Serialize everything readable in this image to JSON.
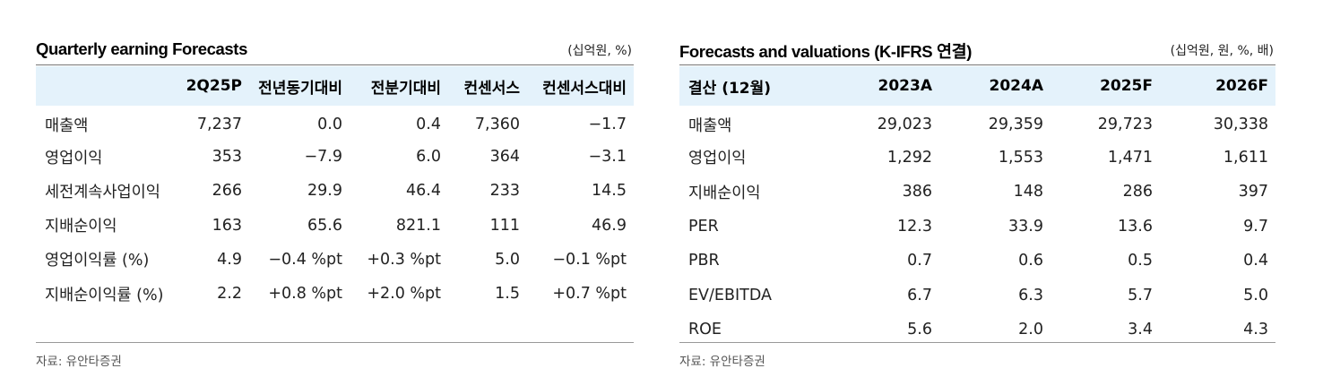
{
  "left": {
    "title": "Quarterly earning Forecasts",
    "unit": "(십억원, %)",
    "headers": [
      "",
      "2Q25P",
      "전년동기대비",
      "전분기대비",
      "컨센서스",
      "컨센서스대비"
    ],
    "rows": [
      [
        "매출액",
        "7,237",
        "0.0",
        "0.4",
        "7,360",
        "−1.7"
      ],
      [
        "영업이익",
        "353",
        "−7.9",
        "6.0",
        "364",
        "−3.1"
      ],
      [
        "세전계속사업이익",
        "266",
        "29.9",
        "46.4",
        "233",
        "14.5"
      ],
      [
        "지배순이익",
        "163",
        "65.6",
        "821.1",
        "111",
        "46.9"
      ],
      [
        "영업이익률 (%)",
        "4.9",
        "−0.4 %pt",
        "+0.3 %pt",
        "5.0",
        "−0.1 %pt"
      ],
      [
        "지배순이익률 (%)",
        "2.2",
        "+0.8 %pt",
        "+2.0 %pt",
        "1.5",
        "+0.7 %pt"
      ]
    ],
    "source": "자료: 유안타증권"
  },
  "right": {
    "title": "Forecasts and valuations (K-IFRS 연결)",
    "unit": "(십억원, 원, %, 배)",
    "headers": [
      "결산 (12월)",
      "2023A",
      "2024A",
      "2025F",
      "2026F"
    ],
    "rows": [
      [
        "매출액",
        "29,023",
        "29,359",
        "29,723",
        "30,338"
      ],
      [
        "영업이익",
        "1,292",
        "1,553",
        "1,471",
        "1,611"
      ],
      [
        "지배순이익",
        "386",
        "148",
        "286",
        "397"
      ],
      [
        "PER",
        "12.3",
        "33.9",
        "13.6",
        "9.7"
      ],
      [
        "PBR",
        "0.7",
        "0.6",
        "0.5",
        "0.4"
      ],
      [
        "EV/EBITDA",
        "6.7",
        "6.3",
        "5.7",
        "5.0"
      ],
      [
        "ROE",
        "5.6",
        "2.0",
        "3.4",
        "4.3"
      ]
    ],
    "source": "자료: 유안타증권"
  },
  "colors": {
    "header_background": "#e4f2fb",
    "rule": "#777777",
    "source_text": "#555555"
  }
}
